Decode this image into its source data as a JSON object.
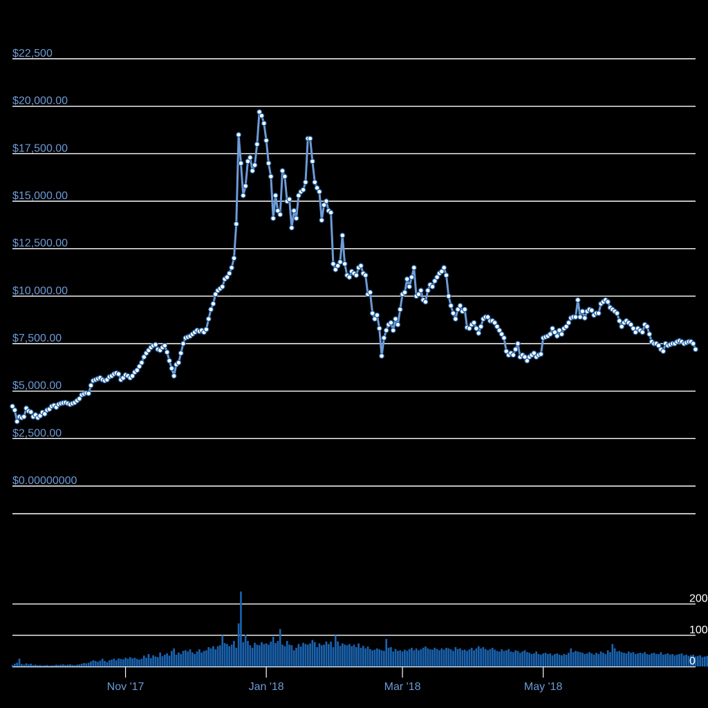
{
  "colors": {
    "background": "#000000",
    "price_line": "#6d9bd8",
    "marker_fill": "#ffffff",
    "marker_stroke": "#1f5fa0",
    "volume_bar": "#1a63b0",
    "grid": "#ffffff",
    "tick_label": "#6d9bd8"
  },
  "chart_data": [
    {
      "type": "line",
      "series": [
        {
          "name": "",
          "markers": true
        }
      ],
      "x_start": "2017-09-13",
      "x_interval_days": 1,
      "values": [
        4200,
        4000,
        3400,
        3650,
        3600,
        3650,
        4100,
        3950,
        3900,
        3650,
        3750,
        3600,
        3700,
        3880,
        3800,
        4000,
        4050,
        4200,
        4250,
        4150,
        4300,
        4350,
        4380,
        4400,
        4350,
        4300,
        4350,
        4400,
        4500,
        4600,
        4800,
        4850,
        4900,
        4880,
        5300,
        5550,
        5600,
        5650,
        5700,
        5600,
        5550,
        5600,
        5750,
        5800,
        5900,
        5950,
        5900,
        5600,
        5700,
        5850,
        5800,
        5700,
        5800,
        6000,
        6100,
        6300,
        6500,
        6800,
        7000,
        7150,
        7300,
        7400,
        7450,
        7200,
        7150,
        7300,
        7400,
        7050,
        6600,
        6200,
        5800,
        6400,
        6500,
        7000,
        7500,
        7800,
        7850,
        7900,
        8000,
        8100,
        8200,
        8150,
        8200,
        8100,
        8250,
        8800,
        9300,
        9600,
        10100,
        10300,
        10400,
        10500,
        10900,
        11000,
        11200,
        11500,
        12000,
        13800,
        18500,
        17000,
        15300,
        15800,
        17100,
        17300,
        16600,
        16900,
        18000,
        19700,
        19500,
        19100,
        18200,
        17000,
        16300,
        14100,
        15300,
        14500,
        14300,
        16600,
        16300,
        15000,
        15100,
        13600,
        14500,
        14100,
        15300,
        15500,
        15600,
        16000,
        18300,
        18300,
        17100,
        16000,
        15700,
        15500,
        14000,
        14800,
        15000,
        14500,
        14400,
        11700,
        11400,
        11600,
        11800,
        13200,
        11700,
        11100,
        11000,
        11300,
        11200,
        11100,
        11500,
        11600,
        11200,
        11100,
        10100,
        10200,
        9100,
        8800,
        9000,
        8300,
        6850,
        7800,
        8200,
        8500,
        8600,
        8200,
        8800,
        8500,
        9300,
        10100,
        10200,
        10900,
        10500,
        11000,
        11500,
        10000,
        10100,
        10300,
        9800,
        9700,
        10300,
        10600,
        10500,
        10800,
        11000,
        11200,
        11300,
        11500,
        11100,
        10000,
        9500,
        9100,
        8800,
        9300,
        9500,
        9200,
        9300,
        8350,
        8300,
        8500,
        8600,
        8300,
        8050,
        8400,
        8800,
        8900,
        8900,
        8700,
        8700,
        8600,
        8400,
        8200,
        8000,
        7800,
        7100,
        6900,
        7000,
        6900,
        7200,
        7500,
        6800,
        6900,
        6800,
        6600,
        6800,
        6900,
        7000,
        6800,
        6900,
        6950,
        7800,
        7850,
        7900,
        8000,
        8300,
        8100,
        7900,
        8200,
        8000,
        8300,
        8400,
        8600,
        8850,
        8900,
        8900,
        9800,
        8900,
        9200,
        8850,
        9200,
        9300,
        9250,
        9000,
        9100,
        9100,
        9600,
        9700,
        9800,
        9700,
        9400,
        9300,
        9200,
        9100,
        8700,
        8400,
        8600,
        8700,
        8600,
        8500,
        8300,
        8100,
        8300,
        8200,
        8100,
        8500,
        8400,
        8000,
        7600,
        7500,
        7500,
        7400,
        7200,
        7100,
        7500,
        7400,
        7450,
        7500,
        7500,
        7600,
        7650,
        7600,
        7500,
        7550,
        7600,
        7600,
        7500,
        7200
      ],
      "y_ticks": [
        "$0.00000000",
        "$2,500.00",
        "$5,000.00",
        "$7,500.00",
        "$10,000.00",
        "$12,500.00",
        "$15,000.00",
        "$17,500.00",
        "$20,000.00",
        "$22,500"
      ],
      "y_tick_values": [
        0,
        2500,
        5000,
        7500,
        10000,
        12500,
        15000,
        17500,
        20000,
        22500
      ],
      "ylim": [
        0,
        22500
      ],
      "grid": true
    },
    {
      "type": "bar",
      "series": [
        {
          "name": ""
        }
      ],
      "x_start": "2017-09-13",
      "x_interval_days": 1,
      "values": [
        5,
        9,
        12,
        25,
        8,
        6,
        10,
        7,
        9,
        5,
        6,
        4,
        5,
        3,
        4,
        5,
        3,
        4,
        4,
        6,
        5,
        6,
        7,
        5,
        6,
        7,
        5,
        4,
        6,
        7,
        9,
        11,
        10,
        12,
        16,
        20,
        18,
        15,
        19,
        25,
        18,
        14,
        20,
        22,
        25,
        20,
        26,
        24,
        23,
        28,
        25,
        30,
        26,
        28,
        24,
        22,
        25,
        35,
        28,
        40,
        27,
        36,
        32,
        30,
        45,
        33,
        38,
        42,
        35,
        50,
        58,
        38,
        45,
        40,
        50,
        52,
        48,
        55,
        45,
        40,
        48,
        55,
        45,
        50,
        52,
        62,
        58,
        65,
        55,
        65,
        68,
        100,
        75,
        72,
        65,
        70,
        82,
        60,
        138,
        240,
        78,
        102,
        82,
        68,
        60,
        76,
        70,
        68,
        78,
        72,
        74,
        70,
        80,
        95,
        75,
        82,
        120,
        70,
        65,
        82,
        70,
        68,
        52,
        60,
        72,
        64,
        76,
        72,
        70,
        74,
        85,
        78,
        62,
        74,
        68,
        70,
        80,
        72,
        80,
        62,
        100,
        80,
        66,
        74,
        70,
        68,
        72,
        65,
        70,
        62,
        74,
        60,
        66,
        58,
        64,
        56,
        52,
        54,
        58,
        55,
        52,
        50,
        88,
        60,
        62,
        48,
        56,
        50,
        52,
        48,
        54,
        50,
        56,
        60,
        52,
        58,
        52,
        55,
        60,
        64,
        58,
        55,
        54,
        60,
        56,
        52,
        58,
        54,
        60,
        58,
        55,
        50,
        62,
        56,
        58,
        52,
        54,
        50,
        55,
        60,
        52,
        58,
        65,
        58,
        62,
        56,
        52,
        56,
        60,
        54,
        50,
        48,
        55,
        50,
        52,
        56,
        48,
        46,
        52,
        50,
        44,
        48,
        52,
        46,
        44,
        40,
        42,
        48,
        40,
        38,
        42,
        44,
        40,
        42,
        36,
        40,
        42,
        38,
        36,
        40,
        38,
        44,
        58,
        46,
        50,
        48,
        46,
        44,
        40,
        42,
        46,
        42,
        38,
        44,
        40,
        48,
        44,
        40,
        52,
        46,
        72,
        58,
        48,
        50,
        46,
        44,
        42,
        48,
        44,
        46,
        40,
        42,
        44,
        42,
        46,
        40,
        38,
        42,
        44,
        40,
        40,
        46,
        38,
        40,
        42,
        38,
        40,
        36,
        38,
        40,
        42,
        36,
        38,
        34,
        36,
        38,
        32,
        34,
        36,
        30,
        32,
        34,
        30,
        28,
        32,
        30,
        28,
        30,
        26,
        28,
        30,
        26,
        28,
        26,
        24
      ],
      "y_ticks": [
        "0",
        "100",
        "200"
      ],
      "y_tick_values": [
        0,
        100,
        200
      ],
      "grid": true
    }
  ],
  "x_axis": {
    "tick_labels": [
      "Nov '17",
      "Jan '18",
      "Mar '18",
      "May '18"
    ],
    "tick_dates": [
      "2017-11-01",
      "2018-01-01",
      "2018-03-01",
      "2018-05-01"
    ]
  }
}
